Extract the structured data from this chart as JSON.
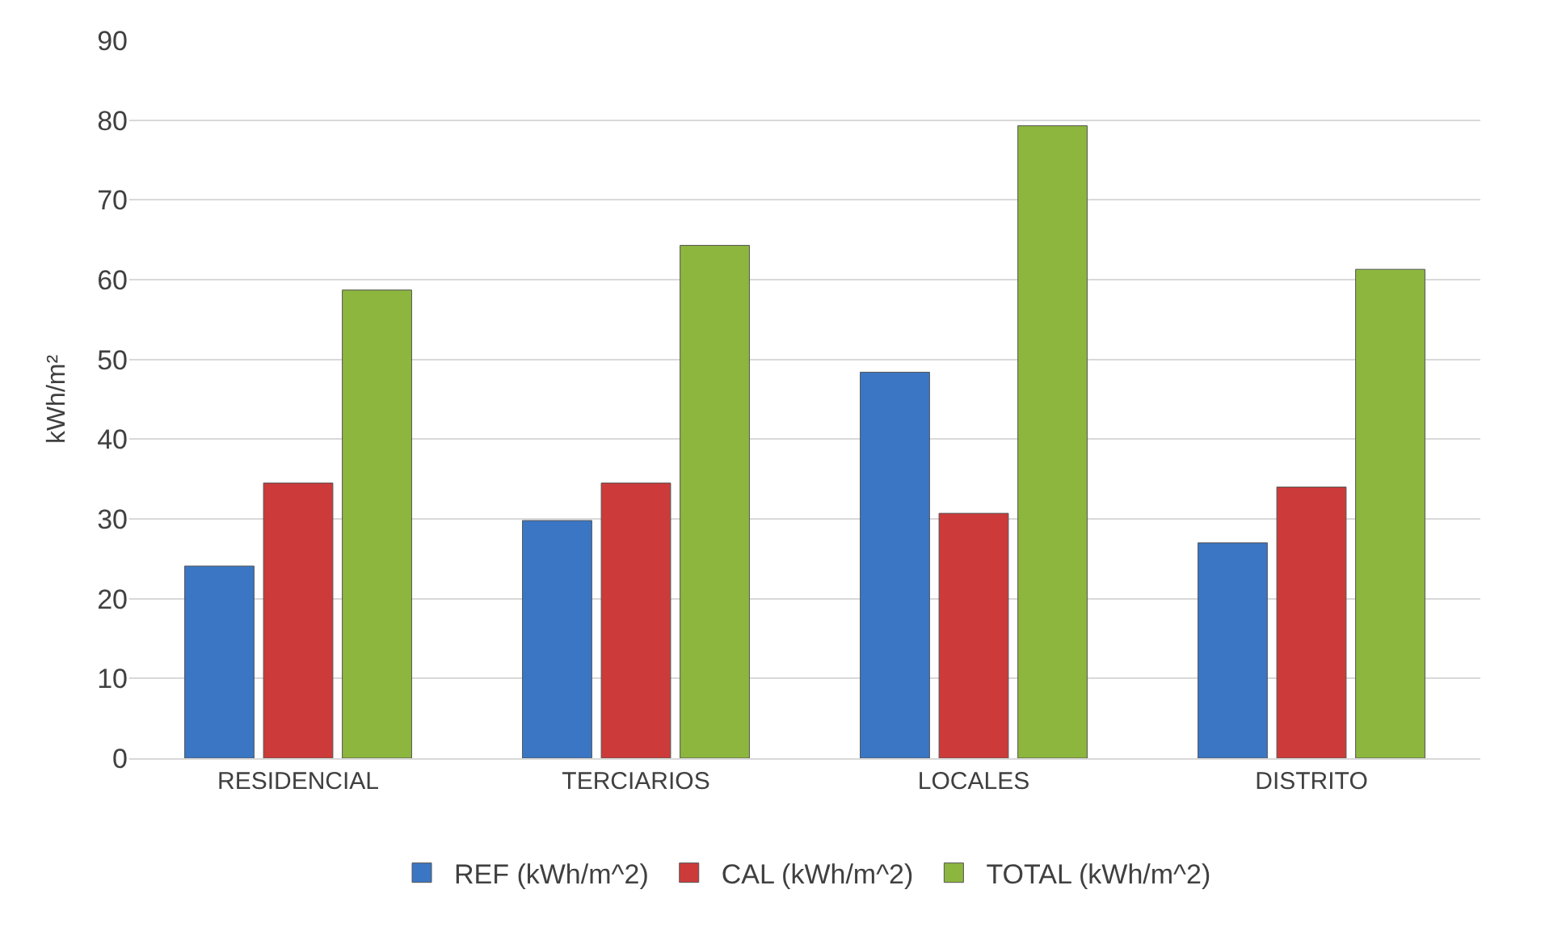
{
  "chart_data": {
    "type": "bar",
    "ylabel": "kWh/m²",
    "categories": [
      "RESIDENCIAL",
      "TERCIARIOS",
      "LOCALES",
      "DISTRITO"
    ],
    "series": [
      {
        "name": "REF (kWh/m^2)",
        "color": "#3a76c4",
        "values": [
          24.1,
          29.8,
          48.4,
          27.0
        ]
      },
      {
        "name": "CAL (kWh/m^2)",
        "color": "#cc3b3a",
        "values": [
          34.5,
          34.5,
          30.7,
          34.0
        ]
      },
      {
        "name": "TOTAL (kWh/m^2)",
        "color": "#8db63e",
        "values": [
          58.7,
          64.3,
          79.3,
          61.3
        ]
      }
    ],
    "ylim": [
      0,
      90
    ],
    "yticks": [
      0,
      10,
      20,
      30,
      40,
      50,
      60,
      70,
      80,
      90
    ],
    "grid": "y",
    "legend": "bottom"
  }
}
